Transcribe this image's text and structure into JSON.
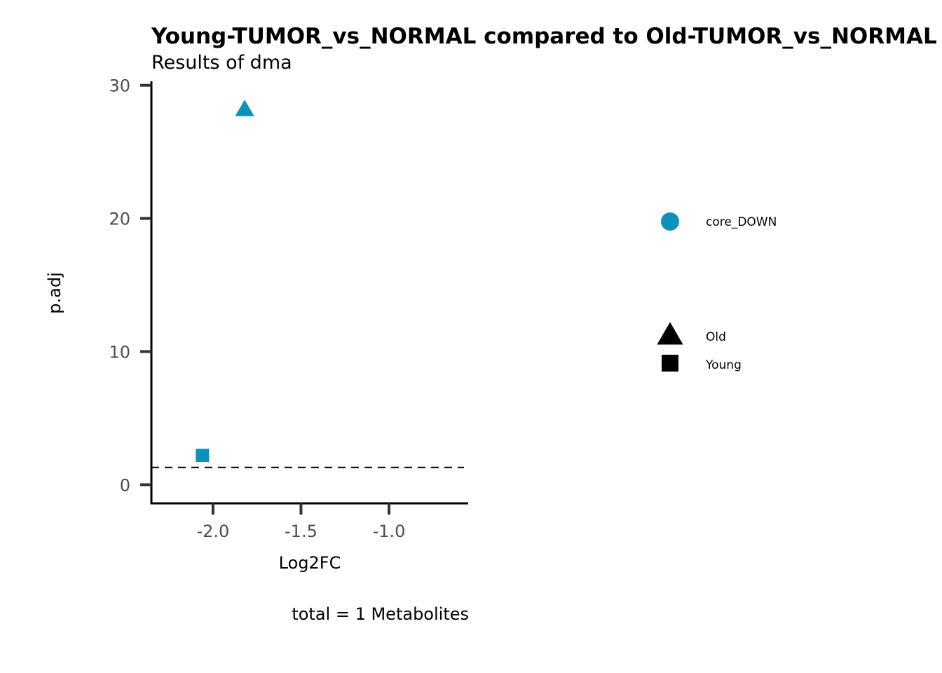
{
  "chart_data": {
    "type": "scatter",
    "title": "Young-TUMOR_vs_NORMAL compared to Old-TUMOR_vs_NORMAL",
    "subtitle": "Results of dma",
    "xlabel": "Log2FC",
    "ylabel": "p.adj",
    "caption": "total = 1 Metabolites",
    "xlim": [
      -2.35,
      -0.55
    ],
    "ylim": [
      -1.4,
      30.3
    ],
    "xticks": [
      -2.0,
      -1.5,
      -1.0
    ],
    "xtick_labels": [
      "-2.0",
      "-1.5",
      "-1.0"
    ],
    "yticks": [
      0,
      10,
      20,
      30
    ],
    "ytick_labels": [
      "0",
      "10",
      "20",
      "30"
    ],
    "hline": {
      "y": 1.3,
      "style": "dashed"
    },
    "grid": false,
    "points": [
      {
        "x": -1.82,
        "y": 28.2,
        "shape": "triangle",
        "group": "Old",
        "color_group": "core_DOWN"
      },
      {
        "x": -2.06,
        "y": 2.2,
        "shape": "square",
        "group": "Young",
        "color_group": "core_DOWN"
      }
    ],
    "legend": {
      "placement": "right",
      "color": [
        {
          "label": "core_DOWN",
          "color": "#0a93b9"
        }
      ],
      "shape": [
        {
          "label": "Old",
          "shape": "triangle"
        },
        {
          "label": "Young",
          "shape": "square"
        }
      ]
    },
    "colors": {
      "core_DOWN": "#0a93b9"
    }
  }
}
